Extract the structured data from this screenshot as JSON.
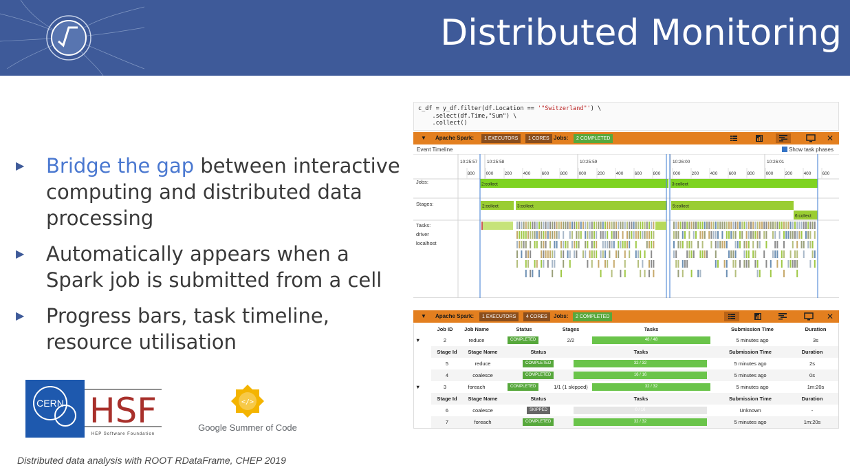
{
  "slide": {
    "title": "Distributed Monitoring",
    "footer": "Distributed data analysis with ROOT RDataFrame, CHEP 2019"
  },
  "bullets": [
    {
      "highlight": "Bridge the gap",
      "line1_rest": " between interactive",
      "line2": "computing and distributed data",
      "line3": "processing"
    },
    {
      "line1": "Automatically appears when a",
      "line2": "Spark job is submitted from a cell"
    },
    {
      "line1": "Progress bars, task timeline,",
      "line2": "resource utilisation"
    }
  ],
  "logos": {
    "cern": "CERN",
    "hsf": "HSF",
    "hsf_sub": "HEP Software Foundation",
    "gsoc": "Google Summer of Code"
  },
  "code": {
    "line1_a": "c_df = y_df.filter(df.Location == ",
    "line1_str": "'\"Switzerland\"'",
    "line1_b": ") \\",
    "line2": "    .select(df.Time,\"Sum\") \\",
    "line3": "    .collect()"
  },
  "spark_top": {
    "toggle": "▼",
    "label": "Apache Spark:",
    "executors": "1 EXECUTORS",
    "cores": "1 CORES",
    "jobs_label": "Jobs:",
    "jobs_status": "2 COMPLETED",
    "close": "✕"
  },
  "timeline": {
    "title": "Event Timeline",
    "show_phases": "Show task phases",
    "row_labels": [
      "Jobs:",
      "Stages:",
      "Tasks:",
      "driver",
      "localhost"
    ],
    "time_labels": [
      "10:25:57",
      "10:25:58",
      "10:25:59",
      "10:26:00",
      "10:26:01"
    ],
    "ms_ticks": [
      "800",
      "000",
      "200",
      "400",
      "600",
      "800",
      "000",
      "200",
      "400",
      "600",
      "800",
      "000",
      "200",
      "400",
      "600",
      "800",
      "000",
      "200",
      "400",
      "600"
    ],
    "jobs": [
      "2:collect",
      "3:collect"
    ],
    "stages": [
      "2:collect",
      "3:collect",
      "5:collect",
      "6:collect"
    ]
  },
  "spark_bottom": {
    "toggle": "▼",
    "label": "Apache Spark:",
    "executors": "1 EXECUTORS",
    "cores": "4 CORES",
    "jobs_label": "Jobs:",
    "jobs_status": "2 COMPLETED",
    "close": "✕"
  },
  "jobs_table": {
    "headers": {
      "job_id": "Job ID",
      "job_name": "Job Name",
      "status": "Status",
      "stages": "Stages",
      "tasks": "Tasks",
      "submission": "Submission Time",
      "duration": "Duration"
    },
    "stage_headers": {
      "stage_id": "Stage Id",
      "stage_name": "Stage Name",
      "status": "Status",
      "tasks": "Tasks",
      "submission": "Submission Time",
      "duration": "Duration"
    },
    "jobs": [
      {
        "toggle": "▼",
        "id": "2",
        "name": "reduce",
        "status": "COMPLETED",
        "stages": "2/2",
        "tasks": "48 / 48",
        "progress": 1.0,
        "submitted": "5 minutes ago",
        "duration": "3s",
        "stages_list": [
          {
            "id": "5",
            "name": "reduce",
            "status": "COMPLETED",
            "tasks": "32 / 32",
            "progress": 1.0,
            "submitted": "5 minutes ago",
            "duration": "2s"
          },
          {
            "id": "4",
            "name": "coalesce",
            "status": "COMPLETED",
            "tasks": "16 / 16",
            "progress": 1.0,
            "submitted": "5 minutes ago",
            "duration": "0s"
          }
        ]
      },
      {
        "toggle": "▼",
        "id": "3",
        "name": "foreach",
        "status": "COMPLETED",
        "stages": "1/1 (1 skipped)",
        "tasks": "32 / 32",
        "progress": 1.0,
        "submitted": "5 minutes ago",
        "duration": "1m:20s",
        "stages_list": [
          {
            "id": "6",
            "name": "coalesce",
            "status": "SKIPPED",
            "tasks": "0 / 16",
            "progress": 0.0,
            "submitted": "Unknown",
            "duration": "-"
          },
          {
            "id": "7",
            "name": "foreach",
            "status": "COMPLETED",
            "tasks": "32 / 32",
            "progress": 1.0,
            "submitted": "5 minutes ago",
            "duration": "1m:20s"
          }
        ]
      }
    ]
  },
  "colors": {
    "header": "#3e5a99",
    "spark_orange": "#e37f1f",
    "completed": "#57a83c",
    "job_bar": "#7ed321",
    "stage_bar": "#9acd32",
    "highlight": "#4a78d0"
  }
}
